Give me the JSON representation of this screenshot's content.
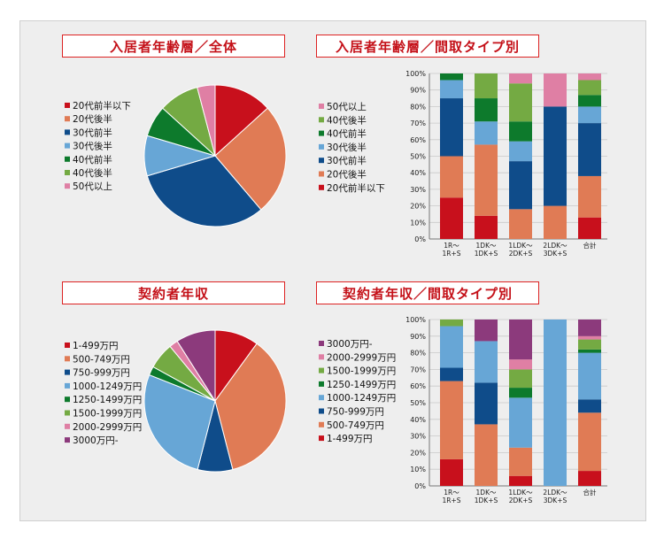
{
  "colors": {
    "red": "#c8101c",
    "orange": "#e07b55",
    "navy": "#0f4c8a",
    "light_blue": "#67a6d6",
    "green": "#0d7a2c",
    "light_green": "#74aa43",
    "pink": "#df7fa4",
    "purple": "#8c3a7c",
    "title_border": "#dd2222",
    "title_text": "#c41018"
  },
  "titles": {
    "age_all": "入居者年齢層／全体",
    "age_by_type": "入居者年齢層／間取タイプ別",
    "income_all": "契約者年収",
    "income_by_type": "契約者年収／間取タイプ別"
  },
  "chart_data": [
    {
      "type": "pie",
      "title": "入居者年齢層／全体",
      "labels": [
        "20代前半以下",
        "20代後半",
        "30代前半",
        "30代後半",
        "40代前半",
        "40代後半",
        "50代以上"
      ],
      "values": [
        13,
        25,
        31,
        9,
        7,
        9,
        4
      ],
      "colors": [
        "#c8101c",
        "#e07b55",
        "#0f4c8a",
        "#67a6d6",
        "#0d7a2c",
        "#74aa43",
        "#df7fa4"
      ],
      "legend": [
        "20代前半以下",
        "20代後半",
        "30代前半",
        "30代後半",
        "40代前半",
        "40代後半",
        "50代以上"
      ],
      "legend_colors": [
        "#c8101c",
        "#e07b55",
        "#0f4c8a",
        "#67a6d6",
        "#0d7a2c",
        "#74aa43",
        "#df7fa4"
      ]
    },
    {
      "type": "bar",
      "stacked": true,
      "title": "入居者年齢層／間取タイプ別",
      "categories": [
        "1R～\n1R+S",
        "1DK～\n1DK+S",
        "1LDK～\n2DK+S",
        "2LDK～\n3DK+S",
        "合計"
      ],
      "ylim": [
        0,
        100
      ],
      "yticks": [
        "0%",
        "10%",
        "20%",
        "30%",
        "40%",
        "50%",
        "60%",
        "70%",
        "80%",
        "90%",
        "100%"
      ],
      "series": [
        {
          "name": "20代前半以下",
          "color": "#c8101c",
          "values": [
            25,
            14,
            0,
            0,
            13
          ]
        },
        {
          "name": "20代後半",
          "color": "#e07b55",
          "values": [
            25,
            43,
            18,
            20,
            25
          ]
        },
        {
          "name": "30代前半",
          "color": "#0f4c8a",
          "values": [
            35,
            0,
            29,
            60,
            32
          ]
        },
        {
          "name": "30代後半",
          "color": "#67a6d6",
          "values": [
            11,
            14,
            12,
            0,
            10
          ]
        },
        {
          "name": "40代前半",
          "color": "#0d7a2c",
          "values": [
            4,
            14,
            12,
            0,
            7
          ]
        },
        {
          "name": "40代後半",
          "color": "#74aa43",
          "values": [
            0,
            15,
            23,
            0,
            9
          ]
        },
        {
          "name": "50代以上",
          "color": "#df7fa4",
          "values": [
            0,
            0,
            6,
            20,
            4
          ]
        }
      ],
      "legend": [
        "50代以上",
        "40代後半",
        "40代前半",
        "30代後半",
        "30代前半",
        "20代後半",
        "20代前半以下"
      ],
      "legend_colors": [
        "#df7fa4",
        "#74aa43",
        "#0d7a2c",
        "#67a6d6",
        "#0f4c8a",
        "#e07b55",
        "#c8101c"
      ]
    },
    {
      "type": "pie",
      "title": "契約者年収",
      "labels": [
        "1-499万円",
        "500-749万円",
        "750-999万円",
        "1000-1249万円",
        "1250-1499万円",
        "1500-1999万円",
        "2000-2999万円",
        "3000万円-"
      ],
      "values": [
        10,
        36,
        8,
        27,
        2,
        6,
        2,
        9
      ],
      "colors": [
        "#c8101c",
        "#e07b55",
        "#0f4c8a",
        "#67a6d6",
        "#0d7a2c",
        "#74aa43",
        "#df7fa4",
        "#8c3a7c"
      ],
      "legend": [
        "1-499万円",
        "500-749万円",
        "750-999万円",
        "1000-1249万円",
        "1250-1499万円",
        "1500-1999万円",
        "2000-2999万円",
        "3000万円-"
      ],
      "legend_colors": [
        "#c8101c",
        "#e07b55",
        "#0f4c8a",
        "#67a6d6",
        "#0d7a2c",
        "#74aa43",
        "#df7fa4",
        "#8c3a7c"
      ]
    },
    {
      "type": "bar",
      "stacked": true,
      "title": "契約者年収／間取タイプ別",
      "categories": [
        "1R～\n1R+S",
        "1DK～\n1DK+S",
        "1LDK～\n2DK+S",
        "2LDK～\n3DK+S",
        "合計"
      ],
      "ylim": [
        0,
        100
      ],
      "yticks": [
        "0%",
        "10%",
        "20%",
        "30%",
        "40%",
        "50%",
        "60%",
        "70%",
        "80%",
        "90%",
        "100%"
      ],
      "series": [
        {
          "name": "1-499万円",
          "color": "#c8101c",
          "values": [
            16,
            0,
            6,
            0,
            9
          ]
        },
        {
          "name": "500-749万円",
          "color": "#e07b55",
          "values": [
            47,
            37,
            17,
            0,
            35
          ]
        },
        {
          "name": "750-999万円",
          "color": "#0f4c8a",
          "values": [
            8,
            25,
            0,
            0,
            8
          ]
        },
        {
          "name": "1000-1249万円",
          "color": "#67a6d6",
          "values": [
            25,
            25,
            30,
            100,
            28
          ]
        },
        {
          "name": "1250-1499万円",
          "color": "#0d7a2c",
          "values": [
            0,
            0,
            6,
            0,
            2
          ]
        },
        {
          "name": "1500-1999万円",
          "color": "#74aa43",
          "values": [
            4,
            0,
            11,
            0,
            6
          ]
        },
        {
          "name": "2000-2999万円",
          "color": "#df7fa4",
          "values": [
            0,
            0,
            6,
            0,
            2
          ]
        },
        {
          "name": "3000万円-",
          "color": "#8c3a7c",
          "values": [
            0,
            13,
            24,
            0,
            10
          ]
        }
      ],
      "legend": [
        "3000万円-",
        "2000-2999万円",
        "1500-1999万円",
        "1250-1499万円",
        "1000-1249万円",
        "750-999万円",
        "500-749万円",
        "1-499万円"
      ],
      "legend_colors": [
        "#8c3a7c",
        "#df7fa4",
        "#74aa43",
        "#0d7a2c",
        "#67a6d6",
        "#0f4c8a",
        "#e07b55",
        "#c8101c"
      ]
    }
  ]
}
